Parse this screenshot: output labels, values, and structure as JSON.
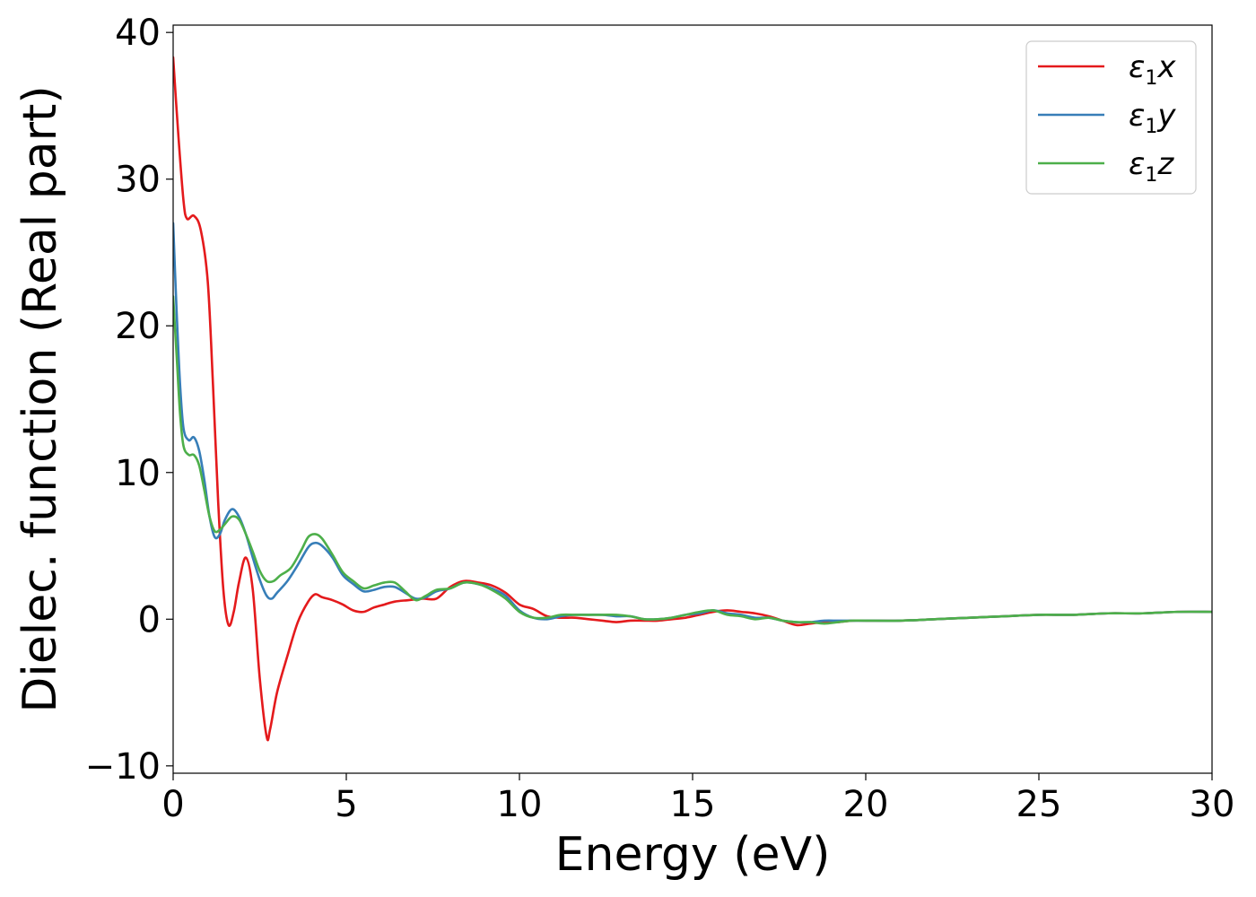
{
  "chart_data": {
    "type": "line",
    "title": "",
    "xlabel": "Energy (eV)",
    "ylabel": "Dielec. function (Real part)",
    "xlim": [
      0,
      30
    ],
    "ylim": [
      -10.5,
      40.5
    ],
    "xticks": [
      0,
      5,
      10,
      15,
      20,
      25,
      30
    ],
    "xtick_labels": [
      "0",
      "5",
      "10",
      "15",
      "20",
      "25",
      "30"
    ],
    "yticks": [
      -10,
      0,
      10,
      20,
      30,
      40
    ],
    "ytick_labels": [
      "−10",
      "0",
      "10",
      "20",
      "30",
      "40"
    ],
    "grid": false,
    "legend_position": "top-right",
    "series": [
      {
        "name": "ε₁x",
        "legend_base": "ε",
        "legend_sub": "1",
        "legend_suffix": "x",
        "color": "#e41a1c",
        "points": [
          [
            0,
            38.3
          ],
          [
            0.15,
            33
          ],
          [
            0.3,
            28.5
          ],
          [
            0.4,
            27.3
          ],
          [
            0.6,
            27.5
          ],
          [
            0.8,
            26.5
          ],
          [
            1.0,
            23
          ],
          [
            1.15,
            16
          ],
          [
            1.3,
            8
          ],
          [
            1.45,
            2
          ],
          [
            1.6,
            -0.4
          ],
          [
            1.75,
            0.5
          ],
          [
            1.9,
            2.5
          ],
          [
            2.1,
            4.2
          ],
          [
            2.3,
            2
          ],
          [
            2.5,
            -4
          ],
          [
            2.7,
            -8
          ],
          [
            2.8,
            -7.5
          ],
          [
            3.0,
            -5
          ],
          [
            3.3,
            -2.5
          ],
          [
            3.6,
            -0.2
          ],
          [
            3.9,
            1.2
          ],
          [
            4.1,
            1.7
          ],
          [
            4.3,
            1.5
          ],
          [
            4.6,
            1.3
          ],
          [
            4.9,
            1.0
          ],
          [
            5.2,
            0.6
          ],
          [
            5.5,
            0.5
          ],
          [
            5.8,
            0.8
          ],
          [
            6.1,
            1.0
          ],
          [
            6.4,
            1.2
          ],
          [
            6.8,
            1.3
          ],
          [
            7.2,
            1.4
          ],
          [
            7.6,
            1.4
          ],
          [
            8.0,
            2.2
          ],
          [
            8.4,
            2.6
          ],
          [
            8.8,
            2.5
          ],
          [
            9.2,
            2.3
          ],
          [
            9.6,
            1.8
          ],
          [
            10.0,
            1.0
          ],
          [
            10.4,
            0.7
          ],
          [
            10.8,
            0.2
          ],
          [
            11.2,
            0.1
          ],
          [
            11.6,
            0.1
          ],
          [
            12.0,
            0.0
          ],
          [
            12.4,
            -0.1
          ],
          [
            12.8,
            -0.2
          ],
          [
            13.2,
            -0.1
          ],
          [
            13.6,
            -0.1
          ],
          [
            14.0,
            -0.1
          ],
          [
            14.4,
            0.0
          ],
          [
            14.8,
            0.1
          ],
          [
            15.2,
            0.3
          ],
          [
            15.6,
            0.5
          ],
          [
            16.0,
            0.6
          ],
          [
            16.4,
            0.5
          ],
          [
            16.8,
            0.4
          ],
          [
            17.2,
            0.2
          ],
          [
            17.6,
            -0.1
          ],
          [
            18.0,
            -0.4
          ],
          [
            18.4,
            -0.3
          ],
          [
            18.8,
            -0.2
          ],
          [
            19.2,
            -0.2
          ],
          [
            19.6,
            -0.1
          ],
          [
            20.0,
            -0.1
          ],
          [
            21.0,
            -0.1
          ],
          [
            22.0,
            0.0
          ],
          [
            23.0,
            0.1
          ],
          [
            24.0,
            0.2
          ],
          [
            25.0,
            0.3
          ],
          [
            26.0,
            0.3
          ],
          [
            27.0,
            0.4
          ],
          [
            28.0,
            0.4
          ],
          [
            29.0,
            0.5
          ],
          [
            30.0,
            0.5
          ]
        ]
      },
      {
        "name": "ε₁y",
        "legend_base": "ε",
        "legend_sub": "1",
        "legend_suffix": "y",
        "color": "#377eb8",
        "points": [
          [
            0,
            27
          ],
          [
            0.1,
            21
          ],
          [
            0.2,
            16
          ],
          [
            0.3,
            13
          ],
          [
            0.45,
            12.2
          ],
          [
            0.6,
            12.4
          ],
          [
            0.75,
            11.5
          ],
          [
            0.9,
            9.5
          ],
          [
            1.05,
            7
          ],
          [
            1.2,
            5.6
          ],
          [
            1.35,
            5.8
          ],
          [
            1.5,
            6.8
          ],
          [
            1.7,
            7.5
          ],
          [
            1.9,
            7.0
          ],
          [
            2.1,
            5.8
          ],
          [
            2.3,
            4.2
          ],
          [
            2.5,
            2.7
          ],
          [
            2.7,
            1.6
          ],
          [
            2.85,
            1.4
          ],
          [
            3.0,
            1.8
          ],
          [
            3.3,
            2.6
          ],
          [
            3.6,
            3.7
          ],
          [
            3.9,
            4.9
          ],
          [
            4.1,
            5.2
          ],
          [
            4.3,
            5.0
          ],
          [
            4.6,
            4.2
          ],
          [
            4.9,
            3.0
          ],
          [
            5.2,
            2.4
          ],
          [
            5.5,
            1.9
          ],
          [
            5.8,
            2.0
          ],
          [
            6.1,
            2.2
          ],
          [
            6.4,
            2.2
          ],
          [
            6.7,
            1.8
          ],
          [
            7.0,
            1.4
          ],
          [
            7.3,
            1.5
          ],
          [
            7.6,
            1.9
          ],
          [
            8.0,
            2.1
          ],
          [
            8.4,
            2.5
          ],
          [
            8.8,
            2.4
          ],
          [
            9.2,
            2.1
          ],
          [
            9.6,
            1.6
          ],
          [
            10.0,
            0.6
          ],
          [
            10.4,
            0.1
          ],
          [
            10.8,
            0.0
          ],
          [
            11.2,
            0.2
          ],
          [
            11.6,
            0.3
          ],
          [
            12.0,
            0.3
          ],
          [
            12.4,
            0.3
          ],
          [
            12.8,
            0.2
          ],
          [
            13.2,
            0.2
          ],
          [
            13.6,
            0.0
          ],
          [
            14.0,
            0.0
          ],
          [
            14.4,
            0.1
          ],
          [
            14.8,
            0.3
          ],
          [
            15.2,
            0.4
          ],
          [
            15.6,
            0.6
          ],
          [
            16.0,
            0.4
          ],
          [
            16.4,
            0.3
          ],
          [
            16.8,
            0.1
          ],
          [
            17.2,
            0.1
          ],
          [
            17.6,
            -0.1
          ],
          [
            18.0,
            -0.2
          ],
          [
            18.4,
            -0.2
          ],
          [
            18.8,
            -0.1
          ],
          [
            19.2,
            -0.1
          ],
          [
            19.6,
            -0.1
          ],
          [
            20.0,
            -0.1
          ],
          [
            21.0,
            -0.1
          ],
          [
            22.0,
            0.0
          ],
          [
            23.0,
            0.1
          ],
          [
            24.0,
            0.2
          ],
          [
            25.0,
            0.3
          ],
          [
            26.0,
            0.3
          ],
          [
            27.0,
            0.4
          ],
          [
            28.0,
            0.4
          ],
          [
            29.0,
            0.5
          ],
          [
            30.0,
            0.5
          ]
        ]
      },
      {
        "name": "ε₁z",
        "legend_base": "ε",
        "legend_sub": "1",
        "legend_suffix": "z",
        "color": "#4daf4a",
        "points": [
          [
            0,
            22
          ],
          [
            0.1,
            18
          ],
          [
            0.2,
            14
          ],
          [
            0.3,
            11.8
          ],
          [
            0.45,
            11.2
          ],
          [
            0.6,
            11.2
          ],
          [
            0.75,
            10.5
          ],
          [
            0.9,
            8.8
          ],
          [
            1.05,
            7
          ],
          [
            1.2,
            6.0
          ],
          [
            1.35,
            6.1
          ],
          [
            1.5,
            6.5
          ],
          [
            1.7,
            7.0
          ],
          [
            1.9,
            6.8
          ],
          [
            2.1,
            5.8
          ],
          [
            2.3,
            4.6
          ],
          [
            2.5,
            3.3
          ],
          [
            2.7,
            2.6
          ],
          [
            2.9,
            2.6
          ],
          [
            3.1,
            3.0
          ],
          [
            3.4,
            3.5
          ],
          [
            3.7,
            4.7
          ],
          [
            3.9,
            5.6
          ],
          [
            4.1,
            5.8
          ],
          [
            4.3,
            5.5
          ],
          [
            4.6,
            4.4
          ],
          [
            4.9,
            3.2
          ],
          [
            5.2,
            2.6
          ],
          [
            5.5,
            2.1
          ],
          [
            5.8,
            2.3
          ],
          [
            6.1,
            2.5
          ],
          [
            6.4,
            2.5
          ],
          [
            6.7,
            1.9
          ],
          [
            7.0,
            1.3
          ],
          [
            7.3,
            1.6
          ],
          [
            7.6,
            2.0
          ],
          [
            8.0,
            2.1
          ],
          [
            8.4,
            2.5
          ],
          [
            8.8,
            2.4
          ],
          [
            9.2,
            2.0
          ],
          [
            9.6,
            1.4
          ],
          [
            10.0,
            0.5
          ],
          [
            10.4,
            0.1
          ],
          [
            10.8,
            0.1
          ],
          [
            11.2,
            0.3
          ],
          [
            11.6,
            0.3
          ],
          [
            12.0,
            0.3
          ],
          [
            12.4,
            0.3
          ],
          [
            12.8,
            0.3
          ],
          [
            13.2,
            0.2
          ],
          [
            13.6,
            0.0
          ],
          [
            14.0,
            0.0
          ],
          [
            14.4,
            0.1
          ],
          [
            14.8,
            0.3
          ],
          [
            15.2,
            0.5
          ],
          [
            15.6,
            0.6
          ],
          [
            16.0,
            0.3
          ],
          [
            16.4,
            0.2
          ],
          [
            16.8,
            0.0
          ],
          [
            17.2,
            0.1
          ],
          [
            17.6,
            -0.1
          ],
          [
            18.0,
            -0.2
          ],
          [
            18.4,
            -0.2
          ],
          [
            18.8,
            -0.3
          ],
          [
            19.2,
            -0.2
          ],
          [
            19.6,
            -0.1
          ],
          [
            20.0,
            -0.1
          ],
          [
            21.0,
            -0.1
          ],
          [
            22.0,
            0.0
          ],
          [
            23.0,
            0.1
          ],
          [
            24.0,
            0.2
          ],
          [
            25.0,
            0.3
          ],
          [
            26.0,
            0.3
          ],
          [
            27.0,
            0.4
          ],
          [
            28.0,
            0.4
          ],
          [
            29.0,
            0.5
          ],
          [
            30.0,
            0.5
          ]
        ]
      }
    ]
  }
}
